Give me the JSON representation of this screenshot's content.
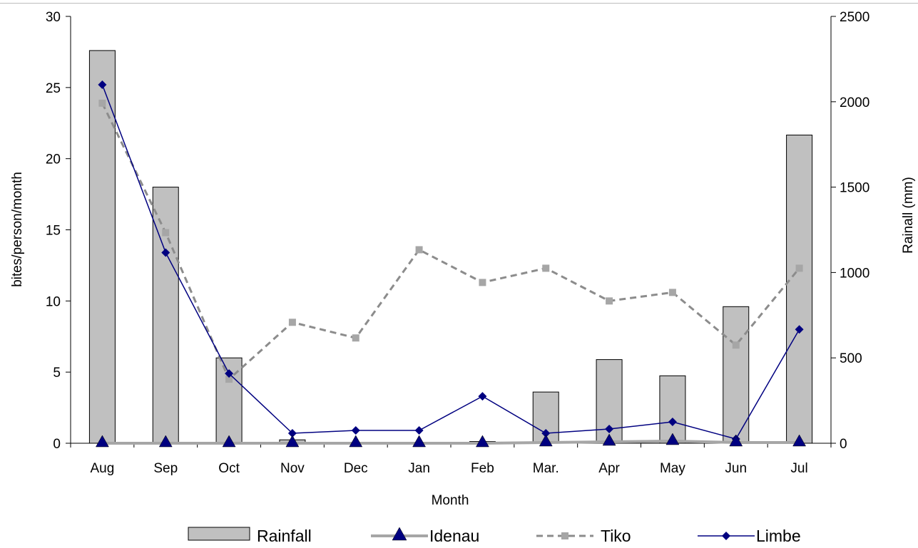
{
  "colors": {
    "rainfall_fill": "#c0c0c0",
    "idenau": "#a6a6a6",
    "tiko": "#8c8c8c",
    "limbe": "#000080",
    "marker_dark": "#000080"
  },
  "chart_data": {
    "type": "bar",
    "categories": [
      "Aug",
      "Sep",
      "Oct",
      "Nov",
      "Dec",
      "Jan",
      "Feb",
      "Mar.",
      "Apr",
      "May",
      "Jun",
      "Jul"
    ],
    "xlabel": "Month",
    "ylabel": "bites/person/month",
    "y2label": "Rainall (mm)",
    "ylim": [
      0,
      30
    ],
    "y2lim": [
      0,
      2500
    ],
    "yticks": [
      "0",
      "5",
      "10",
      "15",
      "20",
      "25",
      "30"
    ],
    "y2ticks": [
      "0",
      "500",
      "1000",
      "1500",
      "2000",
      "2500"
    ],
    "grid": false,
    "legend_position": "bottom",
    "series": [
      {
        "name": "Rainfall",
        "kind": "bar",
        "axis": "right",
        "values": [
          2300,
          1500,
          500,
          20,
          0,
          0,
          10,
          300,
          490,
          395,
          800,
          1805
        ]
      },
      {
        "name": "Idenau",
        "kind": "line",
        "axis": "left",
        "values": [
          0,
          0,
          0,
          0,
          0,
          0,
          0,
          0.05,
          0.1,
          0.15,
          0.05,
          0.05
        ]
      },
      {
        "name": "Tiko",
        "kind": "line-dashed",
        "axis": "left",
        "values": [
          23.9,
          14.8,
          4.5,
          8.5,
          7.4,
          13.6,
          11.3,
          12.3,
          10.0,
          10.6,
          6.9,
          12.3
        ]
      },
      {
        "name": "Limbe",
        "kind": "line",
        "axis": "left",
        "values": [
          25.2,
          13.4,
          4.9,
          0.7,
          0.9,
          0.9,
          3.3,
          0.7,
          1.0,
          1.5,
          0.3,
          8.0
        ]
      }
    ]
  }
}
